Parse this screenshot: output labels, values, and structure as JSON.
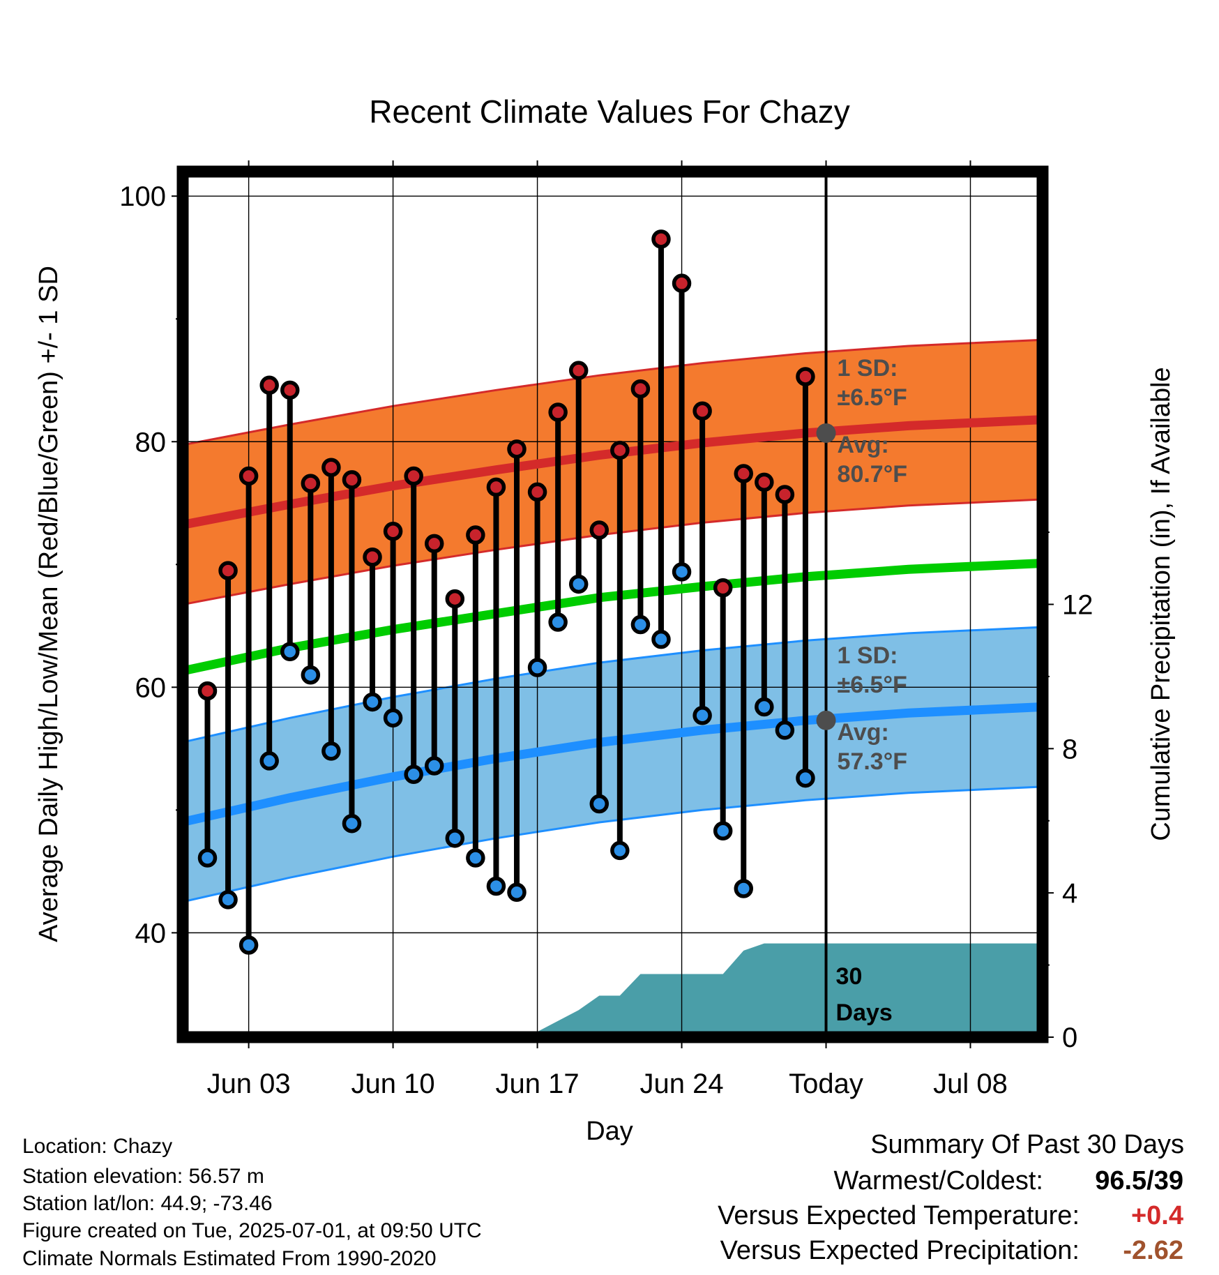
{
  "chart_data": {
    "type": "line",
    "title": "Recent Climate Values For Chazy",
    "xlabel": "Day",
    "ylabel": "Average Daily High/Low/Mean (Red/Blue/Green) +/- 1 SD",
    "y2label": "Cumulative Precipitation (in), If Available",
    "x_tick_labels": [
      "Jun 03",
      "Jun 10",
      "Jun 17",
      "Jun 24",
      "Today",
      "Jul 08"
    ],
    "x_tick_days": [
      3,
      10,
      17,
      24,
      31,
      38
    ],
    "xlim_days": [
      -0.2,
      41.5
    ],
    "ylim": [
      31.5,
      102
    ],
    "y_ticks": [
      40,
      60,
      80,
      100
    ],
    "y2lim": [
      0,
      24
    ],
    "y2_ticks": [
      0,
      4,
      8,
      12
    ],
    "grid": true,
    "today_day": 31,
    "days": [
      1,
      2,
      3,
      4,
      5,
      6,
      7,
      8,
      9,
      10,
      11,
      12,
      13,
      14,
      15,
      16,
      17,
      18,
      19,
      20,
      21,
      22,
      23,
      24,
      25,
      26,
      27,
      28,
      29,
      30
    ],
    "highs": [
      59.7,
      69.5,
      77.2,
      84.6,
      84.2,
      76.6,
      77.9,
      76.9,
      70.6,
      72.7,
      77.2,
      71.7,
      67.2,
      72.4,
      76.3,
      79.4,
      75.9,
      82.4,
      85.8,
      72.8,
      79.3,
      84.3,
      96.5,
      92.9,
      82.5,
      68.1,
      77.4,
      76.7,
      75.7,
      85.3
    ],
    "lows": [
      46.1,
      42.7,
      39.0,
      54.0,
      62.9,
      61.0,
      54.8,
      48.9,
      58.8,
      57.5,
      52.9,
      53.6,
      47.7,
      46.1,
      43.8,
      43.3,
      61.6,
      65.3,
      68.4,
      50.5,
      46.7,
      65.1,
      63.9,
      69.4,
      57.7,
      48.3,
      43.6,
      58.4,
      56.5,
      52.6
    ],
    "normal_high": {
      "days": [
        0,
        5,
        10,
        15,
        20,
        25,
        30,
        35,
        41.5
      ],
      "values": [
        73.3,
        74.9,
        76.4,
        77.7,
        78.9,
        79.9,
        80.7,
        81.3,
        81.8
      ]
    },
    "normal_low": {
      "days": [
        0,
        5,
        10,
        15,
        20,
        25,
        30,
        35,
        41.5
      ],
      "values": [
        49.1,
        51.0,
        52.7,
        54.2,
        55.5,
        56.5,
        57.3,
        57.9,
        58.4
      ]
    },
    "normal_mean": {
      "days": [
        0,
        5,
        10,
        15,
        20,
        25,
        30,
        35,
        41.5
      ],
      "values": [
        61.4,
        63.2,
        64.7,
        66.0,
        67.3,
        68.2,
        69.0,
        69.6,
        70.1
      ]
    },
    "sd": 6.5,
    "precip": {
      "days": [
        0,
        9.8,
        10,
        16.9,
        18,
        19,
        20,
        21,
        22,
        23,
        26,
        27,
        28,
        29,
        41.5
      ],
      "values": [
        0,
        0,
        0.12,
        0.12,
        0.45,
        0.75,
        1.15,
        1.15,
        1.75,
        1.75,
        1.75,
        2.4,
        2.6,
        2.6,
        2.6
      ]
    },
    "annotations": {
      "high_sd_line1": "1 SD:",
      "high_sd_line2": "±6.5°F",
      "high_avg_line1": "Avg:",
      "high_avg_line2": "80.7°F",
      "low_sd_line1": "1 SD:",
      "low_sd_line2": "±6.5°F",
      "low_avg_line1": "Avg:",
      "low_avg_line2": "57.3°F",
      "days_line1": "30",
      "days_line2": "Days"
    },
    "colors": {
      "high_band": "#f47a2e",
      "high_line": "#d42a2a",
      "low_band": "#7fbfe6",
      "low_line": "#1e8fff",
      "mean_line": "#00cc00",
      "precip": "#4a9ea8",
      "high_marker": "#c8232c",
      "low_marker": "#2c8fe6",
      "annotation": "#4d4d4d"
    }
  },
  "info": {
    "location": "Location: Chazy",
    "elevation": "Station elevation: 56.57 m",
    "latlon": "Station lat/lon: 44.9; -73.46",
    "created": "Figure created on Tue, 2025-07-01, at 09:50 UTC",
    "normals": "Climate Normals Estimated From 1990-2020"
  },
  "summary": {
    "title": "Summary Of Past 30 Days",
    "warm_label": "Warmest/Coldest:",
    "warm_value": "96.5/39",
    "temp_label": "Versus Expected Temperature:",
    "temp_value": "+0.4",
    "temp_color": "#d42a2a",
    "precip_label": "Versus Expected Precipitation:",
    "precip_value": "-2.62",
    "precip_color": "#a0522d"
  }
}
